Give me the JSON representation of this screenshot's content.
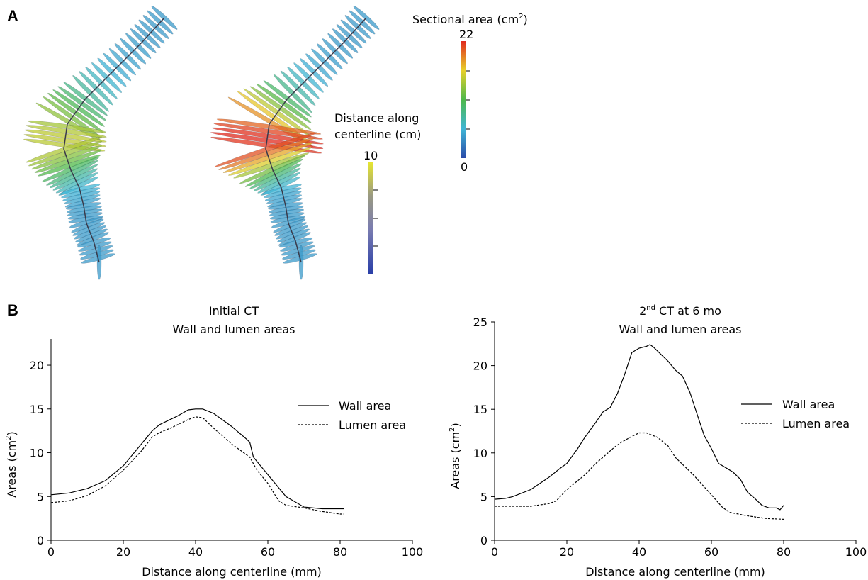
{
  "panel_a": {
    "letter": "A",
    "sectional_colorbar": {
      "title": "Sectional area (cm",
      "title_sup": "2",
      "title_end": ")",
      "max_label": "22",
      "min_label": "0"
    },
    "distance_colorbar": {
      "title_line1": "Distance along",
      "title_line2": "centerline (cm)",
      "max_label": "10"
    }
  },
  "panel_b": {
    "letter": "B"
  },
  "colors": {
    "line": "#000000",
    "axis": "#000000"
  },
  "chart_data": [
    {
      "type": "line",
      "title_line1": "Initial CT",
      "title_line2": "Wall and lumen areas",
      "xlabel": "Distance along centerline (mm)",
      "ylabel": "Areas (cm",
      "ylabel_sup": "2",
      "ylabel_end": ")",
      "xlim": [
        0,
        100
      ],
      "ylim": [
        0,
        23
      ],
      "xticks": [
        0,
        20,
        40,
        60,
        80,
        100
      ],
      "yticks": [
        0,
        5,
        10,
        15,
        20
      ],
      "legend_position": "right",
      "series": [
        {
          "name": "Wall area",
          "style": "solid",
          "x": [
            0,
            5,
            10,
            15,
            20,
            25,
            28,
            30,
            33,
            35,
            38,
            40,
            42,
            45,
            50,
            54,
            55,
            56,
            60,
            65,
            70,
            75,
            80,
            81
          ],
          "y": [
            5.2,
            5.4,
            5.9,
            6.8,
            8.5,
            11.0,
            12.5,
            13.2,
            13.8,
            14.2,
            14.9,
            15.0,
            15.0,
            14.5,
            13.0,
            11.6,
            11.2,
            9.5,
            7.5,
            5.0,
            3.8,
            3.6,
            3.6,
            3.6
          ]
        },
        {
          "name": "Lumen area",
          "style": "dashed",
          "x": [
            0,
            5,
            10,
            15,
            20,
            25,
            28,
            30,
            33,
            35,
            38,
            40,
            42,
            45,
            50,
            55,
            57,
            60,
            63,
            65,
            70,
            75,
            80,
            81
          ],
          "y": [
            4.3,
            4.5,
            5.1,
            6.2,
            8.0,
            10.2,
            11.8,
            12.3,
            12.8,
            13.2,
            13.8,
            14.1,
            14.0,
            12.8,
            11.0,
            9.5,
            8.0,
            6.5,
            4.5,
            4.0,
            3.7,
            3.3,
            3.0,
            3.0
          ]
        }
      ]
    },
    {
      "type": "line",
      "title_line1": "2",
      "title_sup": "nd",
      "title_line1_end": " CT at 6 mo",
      "title_line2": "Wall and lumen areas",
      "xlabel": "Distance along centerline (mm)",
      "ylabel": "Areas (cm",
      "ylabel_sup": "2",
      "ylabel_end": ")",
      "xlim": [
        0,
        100
      ],
      "ylim": [
        0,
        25
      ],
      "xticks": [
        0,
        20,
        40,
        60,
        80,
        100
      ],
      "yticks": [
        0,
        5,
        10,
        15,
        20,
        25
      ],
      "legend_position": "right",
      "series": [
        {
          "name": "Wall area",
          "style": "solid",
          "x": [
            0,
            3,
            5,
            10,
            15,
            18,
            20,
            23,
            25,
            28,
            30,
            32,
            34,
            36,
            38,
            40,
            42,
            43,
            44,
            46,
            48,
            50,
            52,
            54,
            56,
            58,
            60,
            62,
            64,
            66,
            68,
            70,
            72,
            74,
            76,
            78,
            79,
            80
          ],
          "y": [
            4.7,
            4.8,
            5.0,
            5.8,
            7.2,
            8.2,
            8.8,
            10.5,
            11.8,
            13.5,
            14.7,
            15.2,
            16.8,
            19.0,
            21.5,
            22.0,
            22.2,
            22.4,
            22.1,
            21.3,
            20.5,
            19.5,
            18.8,
            17.0,
            14.5,
            12.0,
            10.5,
            8.8,
            8.3,
            7.8,
            7.0,
            5.5,
            4.8,
            4.0,
            3.7,
            3.7,
            3.5,
            4.0
          ]
        },
        {
          "name": "Lumen area",
          "style": "dashed",
          "x": [
            0,
            5,
            10,
            15,
            17,
            20,
            25,
            28,
            30,
            33,
            35,
            38,
            40,
            42,
            45,
            48,
            50,
            55,
            60,
            63,
            65,
            70,
            75,
            80
          ],
          "y": [
            3.9,
            3.9,
            3.9,
            4.2,
            4.5,
            5.8,
            7.5,
            8.8,
            9.5,
            10.6,
            11.2,
            11.9,
            12.3,
            12.3,
            11.8,
            10.8,
            9.5,
            7.5,
            5.2,
            3.8,
            3.2,
            2.8,
            2.5,
            2.4
          ]
        }
      ]
    }
  ]
}
